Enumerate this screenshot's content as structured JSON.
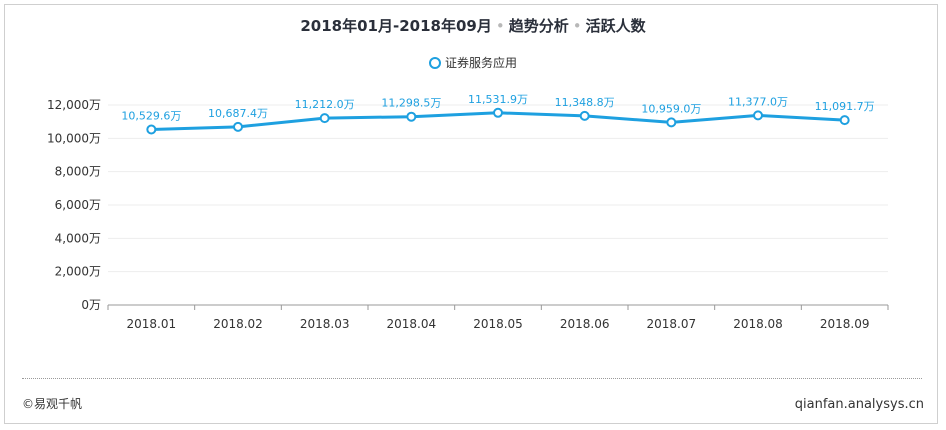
{
  "title": {
    "period": "2018年01月-2018年09月",
    "separator": "•",
    "section": "趋势分析",
    "metric": "活跃人数"
  },
  "legend": {
    "label": "证券服务应用"
  },
  "chart_data": {
    "type": "line",
    "categories": [
      "2018.01",
      "2018.02",
      "2018.03",
      "2018.04",
      "2018.05",
      "2018.06",
      "2018.07",
      "2018.08",
      "2018.09"
    ],
    "series": [
      {
        "name": "证券服务应用",
        "values": [
          10529.6,
          10687.4,
          11212.0,
          11298.5,
          11531.9,
          11348.8,
          10959.0,
          11377.0,
          11091.7
        ],
        "labels": [
          "10,529.6万",
          "10,687.4万",
          "11,212.0万",
          "11,298.5万",
          "11,531.9万",
          "11,348.8万",
          "10,959.0万",
          "11,377.0万",
          "11,091.7万"
        ],
        "color": "#1ea0e0"
      }
    ],
    "yticks": [
      0,
      2000,
      4000,
      6000,
      8000,
      10000,
      12000
    ],
    "ytick_labels": [
      "0万",
      "2,000万",
      "4,000万",
      "6,000万",
      "8,000万",
      "10,000万",
      "12,000万"
    ],
    "ylim": [
      0,
      12000
    ],
    "grid": true
  },
  "footer": {
    "copyright": "©易观千帆",
    "site": "qianfan.analysys.cn"
  },
  "colors": {
    "accent": "#1ea0e0",
    "grid": "#ededed",
    "axis_text": "#333333"
  }
}
